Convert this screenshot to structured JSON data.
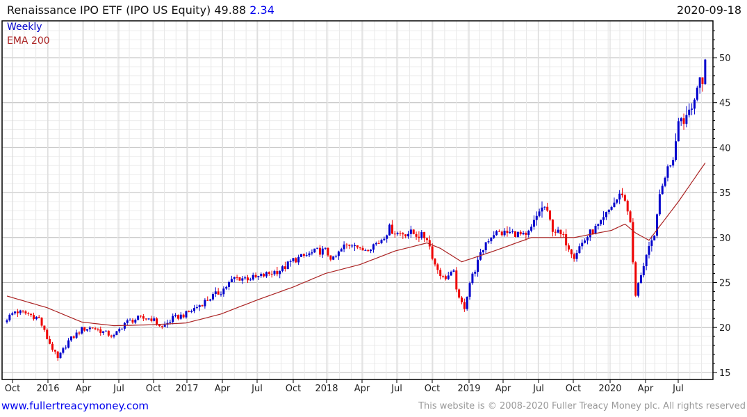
{
  "header": {
    "title": "Renaissance IPO ETF (IPO US Equity) 49.88",
    "change": "2.34",
    "date": "2020-09-18"
  },
  "legend": {
    "series": "Weekly",
    "ema": "EMA 200"
  },
  "footer": {
    "link": "www.fullertreacymoney.com",
    "copyright": "This website is © 2008-2020 Fuller Treacy Money plc. All rights reserved"
  },
  "colors": {
    "up": "#0000cc",
    "down": "#ee0000",
    "ema": "#aa2222",
    "grid": "#dddddd",
    "grid_major": "#bbbbbb"
  },
  "chart_data": {
    "type": "candlestick",
    "title": "Renaissance IPO ETF (IPO US Equity)",
    "frequency": "Weekly",
    "last_close": 49.88,
    "change": 2.34,
    "ylim": [
      15,
      53
    ],
    "yticks": [
      15,
      20,
      25,
      30,
      35,
      40,
      45,
      50
    ],
    "xticks": [
      "Oct",
      "2016",
      "Apr",
      "Jul",
      "Oct",
      "2017",
      "Apr",
      "Jul",
      "Oct",
      "2018",
      "Apr",
      "Jul",
      "Oct",
      "2019",
      "Apr",
      "Jul",
      "Oct",
      "2020",
      "Apr",
      "Jul"
    ],
    "weeks": 262,
    "close_anchors": [
      [
        0,
        21
      ],
      [
        3,
        21.8
      ],
      [
        8,
        21.5
      ],
      [
        12,
        21
      ],
      [
        15,
        18.8
      ],
      [
        19,
        16.5
      ],
      [
        23,
        18.5
      ],
      [
        28,
        19.8
      ],
      [
        32,
        20
      ],
      [
        36,
        19.5
      ],
      [
        40,
        19
      ],
      [
        44,
        20.5
      ],
      [
        49,
        21
      ],
      [
        54,
        21
      ],
      [
        58,
        20
      ],
      [
        62,
        21
      ],
      [
        67,
        21.5
      ],
      [
        72,
        22.5
      ],
      [
        77,
        23.5
      ],
      [
        80,
        24
      ],
      [
        85,
        25.5
      ],
      [
        89,
        25.5
      ],
      [
        93,
        25.5
      ],
      [
        98,
        26
      ],
      [
        103,
        26.5
      ],
      [
        107,
        27.5
      ],
      [
        112,
        28
      ],
      [
        116,
        28.5
      ],
      [
        119,
        28.5
      ],
      [
        122,
        27.5
      ],
      [
        126,
        29
      ],
      [
        130,
        29.5
      ],
      [
        132,
        28.5
      ],
      [
        139,
        29.5
      ],
      [
        143,
        31
      ],
      [
        146,
        30.5
      ],
      [
        151,
        30.5
      ],
      [
        157,
        30
      ],
      [
        160,
        27
      ],
      [
        163,
        25.5
      ],
      [
        167,
        26
      ],
      [
        169,
        23
      ],
      [
        171,
        22.3
      ],
      [
        173,
        25
      ],
      [
        177,
        28
      ],
      [
        179,
        29.5
      ],
      [
        182,
        30.5
      ],
      [
        190,
        30.5
      ],
      [
        194,
        30
      ],
      [
        196,
        31
      ],
      [
        199,
        33
      ],
      [
        201,
        33.4
      ],
      [
        204,
        31
      ],
      [
        208,
        30
      ],
      [
        212,
        28
      ],
      [
        214,
        29
      ],
      [
        218,
        30.5
      ],
      [
        222,
        31.5
      ],
      [
        226,
        33.5
      ],
      [
        230,
        35
      ],
      [
        233,
        32
      ],
      [
        234,
        27
      ],
      [
        235,
        23.5
      ],
      [
        237,
        26
      ],
      [
        239,
        28
      ],
      [
        242,
        30
      ],
      [
        243,
        33
      ],
      [
        246,
        37
      ],
      [
        249,
        39
      ],
      [
        250,
        41
      ],
      [
        251,
        43.5
      ],
      [
        253,
        43
      ],
      [
        256,
        45
      ],
      [
        258,
        46
      ],
      [
        259,
        47.7
      ],
      [
        260,
        47.5
      ],
      [
        261,
        49.88
      ]
    ],
    "ema200_anchors": [
      [
        0,
        23.5
      ],
      [
        15,
        22.2
      ],
      [
        28,
        20.6
      ],
      [
        40,
        20.2
      ],
      [
        54,
        20.3
      ],
      [
        67,
        20.5
      ],
      [
        80,
        21.5
      ],
      [
        93,
        23
      ],
      [
        107,
        24.5
      ],
      [
        119,
        26
      ],
      [
        132,
        27
      ],
      [
        145,
        28.5
      ],
      [
        157,
        29.4
      ],
      [
        162,
        28.8
      ],
      [
        170,
        27.3
      ],
      [
        182,
        28.5
      ],
      [
        196,
        30
      ],
      [
        212,
        30
      ],
      [
        226,
        30.8
      ],
      [
        231,
        31.5
      ],
      [
        235,
        30.5
      ],
      [
        240,
        29.7
      ],
      [
        251,
        34
      ],
      [
        261,
        38.3
      ]
    ]
  }
}
